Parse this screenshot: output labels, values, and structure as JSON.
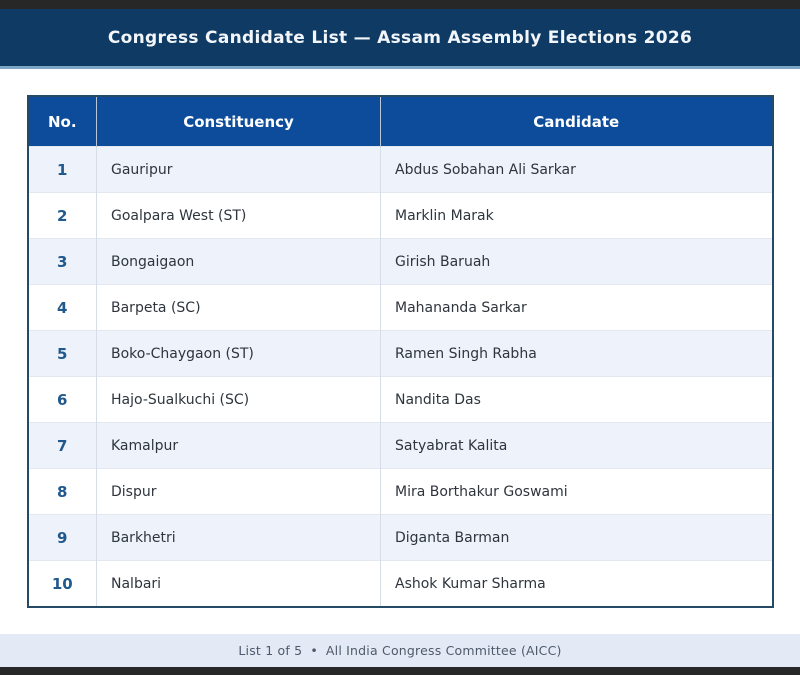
{
  "header": {
    "title": "Congress Candidate List — Assam Assembly Elections 2026"
  },
  "table": {
    "columns": [
      "No.",
      "Constituency",
      "Candidate"
    ],
    "rows": [
      {
        "no": "1",
        "constituency": "Gauripur",
        "candidate": "Abdus Sobahan Ali Sarkar"
      },
      {
        "no": "2",
        "constituency": "Goalpara West (ST)",
        "candidate": "Marklin Marak"
      },
      {
        "no": "3",
        "constituency": "Bongaigaon",
        "candidate": "Girish Baruah"
      },
      {
        "no": "4",
        "constituency": "Barpeta (SC)",
        "candidate": "Mahananda Sarkar"
      },
      {
        "no": "5",
        "constituency": "Boko-Chaygaon (ST)",
        "candidate": "Ramen Singh Rabha"
      },
      {
        "no": "6",
        "constituency": "Hajo-Sualkuchi (SC)",
        "candidate": "Nandita Das"
      },
      {
        "no": "7",
        "constituency": "Kamalpur",
        "candidate": "Satyabrat Kalita"
      },
      {
        "no": "8",
        "constituency": "Dispur",
        "candidate": "Mira Borthakur Goswami"
      },
      {
        "no": "9",
        "constituency": "Barkhetri",
        "candidate": "Diganta Barman"
      },
      {
        "no": "10",
        "constituency": "Nalbari",
        "candidate": "Ashok Kumar Sharma"
      }
    ]
  },
  "footer": {
    "page_label": "List 1 of 5",
    "separator": "•",
    "org": "All India Congress Committee (AICC)"
  },
  "colors": {
    "top_bottom_strip": "#272727",
    "header_navy": "#0f3a63",
    "header_underline": "#7da6c6",
    "table_header_blue": "#0d4c9a",
    "table_border": "#254a66",
    "row_alt_blue": "#eef2fb",
    "number_text_blue": "#21598c",
    "footer_bg": "#e4eaf5",
    "footer_text": "#4d5a6b"
  }
}
